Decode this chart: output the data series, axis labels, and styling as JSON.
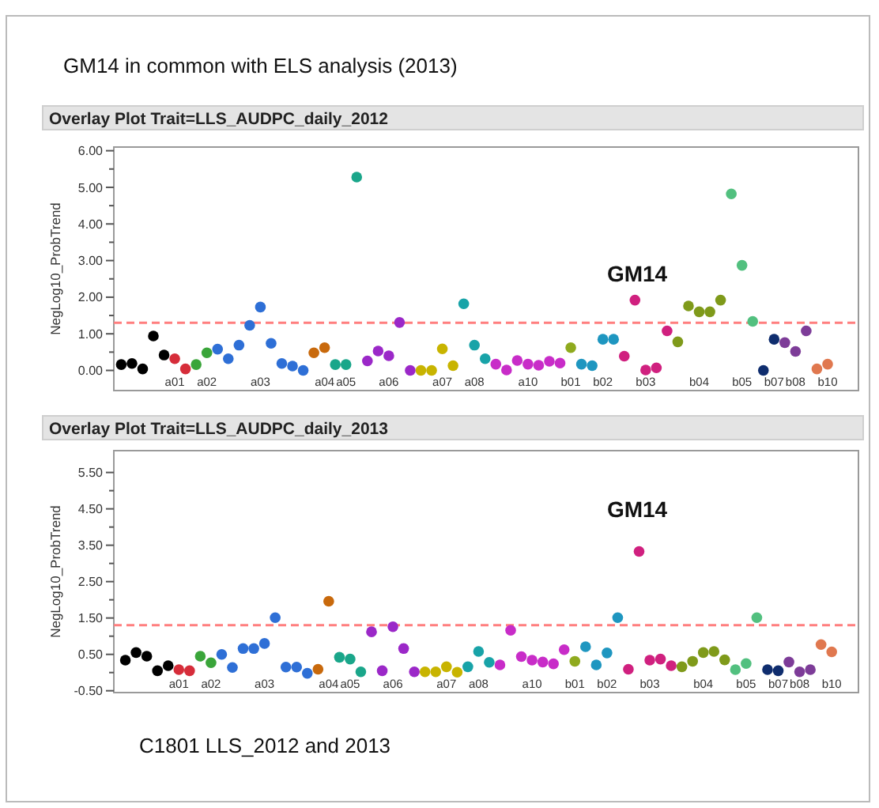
{
  "chart_data": [
    {
      "type": "scatter",
      "title": "Overlay Plot Trait=LLS_AUDPC_daily_2012",
      "ylabel": "NegLog10_ProbTrend",
      "marker": "circle",
      "annotations": [
        "GM14 in common with ELS analysis (2013)",
        "GM14"
      ],
      "categories": [
        null,
        null,
        null,
        null,
        null,
        "a01",
        null,
        null,
        "a02",
        null,
        null,
        null,
        null,
        "a03",
        null,
        null,
        null,
        null,
        null,
        "a04",
        null,
        "a05",
        null,
        null,
        null,
        "a06",
        null,
        null,
        null,
        null,
        "a07",
        null,
        null,
        "a08",
        null,
        null,
        null,
        null,
        "a10",
        null,
        null,
        null,
        "b01",
        null,
        null,
        "b02",
        null,
        null,
        null,
        "b03",
        null,
        null,
        null,
        null,
        "b04",
        null,
        null,
        null,
        "b05",
        null,
        null,
        "b07",
        null,
        "b08",
        null,
        null,
        "b10"
      ],
      "ylim": [
        -0.55,
        6.1
      ],
      "yticks": [
        {
          "value": 0,
          "label": "0.00"
        },
        {
          "value": 0.5,
          "label": null
        },
        {
          "value": 1,
          "label": "1.00"
        },
        {
          "value": 1.5,
          "label": null
        },
        {
          "value": 2,
          "label": "2.00"
        },
        {
          "value": 2.5,
          "label": null
        },
        {
          "value": 3,
          "label": "3.00"
        },
        {
          "value": 3.5,
          "label": null
        },
        {
          "value": 4,
          "label": "4.00"
        },
        {
          "value": 4.5,
          "label": null
        },
        {
          "value": 5,
          "label": "5.00"
        },
        {
          "value": 5.5,
          "label": null
        },
        {
          "value": 6,
          "label": "6.00"
        }
      ],
      "ref_lines": [
        {
          "axis": "y",
          "value": 1.3,
          "color": "#ff7f7f",
          "line_style": "dashed"
        }
      ],
      "series": [
        {
          "colors": [
            "#000000",
            "#000000",
            "#000000",
            "#000000",
            "#000000",
            "#d62d3a",
            "#d62d3a",
            "#3aa53a",
            "#3aa53a",
            "#2e6fd6",
            "#2e6fd6",
            "#2e6fd6",
            "#2e6fd6",
            "#2e6fd6",
            "#2e6fd6",
            "#2e6fd6",
            "#2e6fd6",
            "#2e6fd6",
            "#c8690c",
            "#c8690c",
            "#1aa68a",
            "#1aa68a",
            "#1aa68a",
            "#9b28c8",
            "#9b28c8",
            "#9b28c8",
            "#9b28c8",
            "#9b28c8",
            "#c8b400",
            "#c8b400",
            "#c8b400",
            "#c8b400",
            "#18a3a8",
            "#18a3a8",
            "#18a3a8",
            "#c82cc8",
            "#c82cc8",
            "#c82cc8",
            "#c82cc8",
            "#c82cc8",
            "#c82cc8",
            "#c82cc8",
            "#8faa1e",
            "#1e96c0",
            "#1e96c0",
            "#1e96c0",
            "#1e96c0",
            "#d0207f",
            "#d0207f",
            "#d0207f",
            "#d0207f",
            "#d0207f",
            "#7f9a1a",
            "#7f9a1a",
            "#7f9a1a",
            "#7f9a1a",
            "#7f9a1a",
            "#52c07f",
            "#52c07f",
            "#52c07f",
            "#0f2d6e",
            "#0f2d6e",
            "#7d3c98",
            "#7d3c98",
            "#7d3c98",
            "#e0784f",
            "#e0784f"
          ],
          "values": [
            0.16,
            0.19,
            0.04,
            0.94,
            0.42,
            0.32,
            0.04,
            0.16,
            0.48,
            0.58,
            0.32,
            0.69,
            1.23,
            1.73,
            0.74,
            0.19,
            0.12,
            0.0,
            0.48,
            0.62,
            0.16,
            0.16,
            5.28,
            0.26,
            0.53,
            0.4,
            1.31,
            0.0,
            0.0,
            0.0,
            0.59,
            0.13,
            1.82,
            0.69,
            0.32,
            0.17,
            0.01,
            0.27,
            0.17,
            0.14,
            0.25,
            0.2,
            0.62,
            0.17,
            0.13,
            0.85,
            0.85,
            0.39,
            1.92,
            0.01,
            0.07,
            1.08,
            0.78,
            1.76,
            1.6,
            1.6,
            1.92,
            4.82,
            2.87,
            1.34,
            0.0,
            0.85,
            0.76,
            0.52,
            1.08,
            0.04,
            0.17
          ]
        }
      ]
    },
    {
      "type": "scatter",
      "title": "Overlay Plot Trait=LLS_AUDPC_daily_2013",
      "ylabel": "NegLog10_ProbTrend",
      "marker": "circle",
      "annotations": [
        "C1801 LLS_2012 and 2013",
        "GM14"
      ],
      "categories": [
        null,
        null,
        null,
        null,
        null,
        "a01",
        null,
        null,
        "a02",
        null,
        null,
        null,
        null,
        "a03",
        null,
        null,
        null,
        null,
        null,
        "a04",
        null,
        "a05",
        null,
        null,
        null,
        "a06",
        null,
        null,
        null,
        null,
        "a07",
        null,
        null,
        "a08",
        null,
        null,
        null,
        null,
        "a10",
        null,
        null,
        null,
        "b01",
        null,
        null,
        "b02",
        null,
        null,
        null,
        "b03",
        null,
        null,
        null,
        null,
        "b04",
        null,
        null,
        null,
        "b05",
        null,
        null,
        "b07",
        null,
        "b08",
        null,
        null,
        "b10"
      ],
      "ylim": [
        -0.55,
        6.1
      ],
      "yticks": [
        {
          "value": -0.5,
          "label": "-0.50"
        },
        {
          "value": 0,
          "label": null
        },
        {
          "value": 0.5,
          "label": "0.50"
        },
        {
          "value": 1,
          "label": null
        },
        {
          "value": 1.5,
          "label": "1.50"
        },
        {
          "value": 2,
          "label": null
        },
        {
          "value": 2.5,
          "label": "2.50"
        },
        {
          "value": 3,
          "label": null
        },
        {
          "value": 3.5,
          "label": "3.50"
        },
        {
          "value": 4,
          "label": null
        },
        {
          "value": 4.5,
          "label": "4.50"
        },
        {
          "value": 5,
          "label": null
        },
        {
          "value": 5.5,
          "label": "5.50"
        }
      ],
      "ref_lines": [
        {
          "axis": "y",
          "value": 1.3,
          "color": "#ff7f7f",
          "line_style": "dashed"
        }
      ],
      "series": [
        {
          "colors": [
            "#000000",
            "#000000",
            "#000000",
            "#000000",
            "#000000",
            "#d62d3a",
            "#d62d3a",
            "#3aa53a",
            "#3aa53a",
            "#2e6fd6",
            "#2e6fd6",
            "#2e6fd6",
            "#2e6fd6",
            "#2e6fd6",
            "#2e6fd6",
            "#2e6fd6",
            "#2e6fd6",
            "#2e6fd6",
            "#c8690c",
            "#c8690c",
            "#1aa68a",
            "#1aa68a",
            "#1aa68a",
            "#9b28c8",
            "#9b28c8",
            "#9b28c8",
            "#9b28c8",
            "#9b28c8",
            "#c8b400",
            "#c8b400",
            "#c8b400",
            "#c8b400",
            "#18a3a8",
            "#18a3a8",
            "#18a3a8",
            "#c82cc8",
            "#c82cc8",
            "#c82cc8",
            "#c82cc8",
            "#c82cc8",
            "#c82cc8",
            "#c82cc8",
            "#8faa1e",
            "#1e96c0",
            "#1e96c0",
            "#1e96c0",
            "#1e96c0",
            "#d0207f",
            "#d0207f",
            "#d0207f",
            "#d0207f",
            "#d0207f",
            "#7f9a1a",
            "#7f9a1a",
            "#7f9a1a",
            "#7f9a1a",
            "#7f9a1a",
            "#52c07f",
            "#52c07f",
            "#52c07f",
            "#0f2d6e",
            "#0f2d6e",
            "#7d3c98",
            "#7d3c98",
            "#7d3c98",
            "#e0784f",
            "#e0784f"
          ],
          "values": [
            0.34,
            0.55,
            0.45,
            0.05,
            0.19,
            0.08,
            0.05,
            0.45,
            0.27,
            0.5,
            0.14,
            0.66,
            0.66,
            0.8,
            1.51,
            0.15,
            0.15,
            -0.02,
            0.09,
            1.96,
            0.42,
            0.37,
            0.02,
            1.12,
            0.05,
            1.26,
            0.66,
            0.02,
            0.02,
            0.02,
            0.16,
            0.01,
            0.16,
            0.58,
            0.28,
            0.21,
            1.16,
            0.44,
            0.34,
            0.29,
            0.24,
            0.63,
            0.31,
            0.71,
            0.21,
            0.54,
            1.51,
            0.09,
            3.33,
            0.34,
            0.37,
            0.19,
            0.16,
            0.31,
            0.55,
            0.58,
            0.35,
            0.08,
            0.25,
            1.51,
            0.08,
            0.05,
            0.29,
            0.02,
            0.08,
            0.77,
            0.57
          ]
        }
      ]
    }
  ]
}
